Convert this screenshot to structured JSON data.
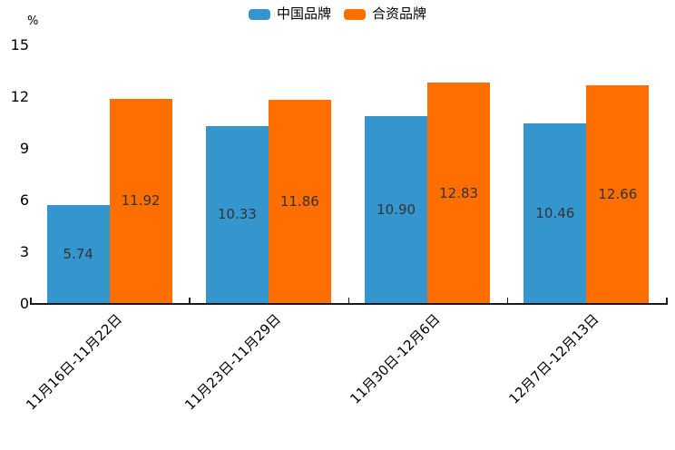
{
  "chart_data": {
    "type": "bar",
    "categories": [
      "11月16日-11月22日",
      "11月23日-11月29日",
      "11月30日-12月6日",
      "12月7日-12月13日"
    ],
    "series": [
      {
        "name": "中国品牌",
        "color": "#3596cd",
        "values": [
          5.74,
          10.33,
          10.9,
          10.46
        ]
      },
      {
        "name": "合资品牌",
        "color": "#ff6e00",
        "values": [
          11.92,
          11.86,
          12.83,
          12.66
        ]
      }
    ],
    "title": "",
    "xlabel": "",
    "ylabel": "%",
    "ylim": [
      0,
      15
    ],
    "yticks": [
      0,
      3,
      6,
      9,
      12,
      15
    ],
    "grid": false,
    "legend_position": "top-center",
    "value_label_decimals": 2,
    "value_label_color": "#333333",
    "axis_color": "#1a1a1a"
  },
  "legend": {
    "items": [
      {
        "label": "中国品牌",
        "color": "#3596cd"
      },
      {
        "label": "合资品牌",
        "color": "#ff6e00"
      }
    ]
  }
}
